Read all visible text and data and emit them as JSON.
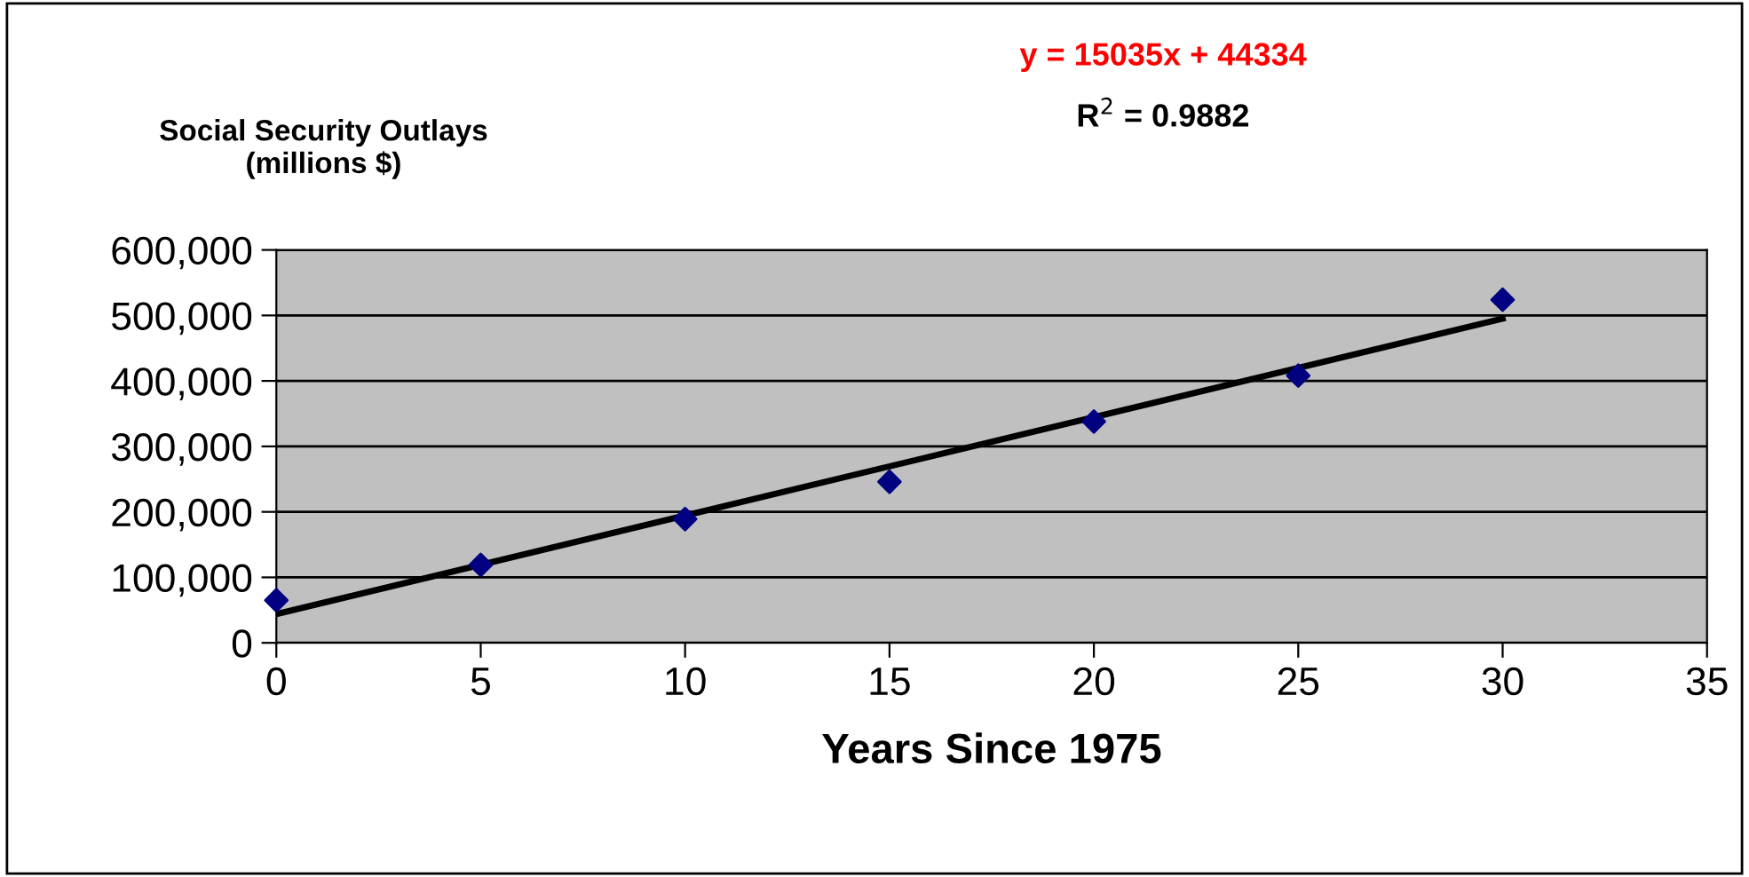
{
  "chart_data": {
    "type": "scatter",
    "title": "Social Security Outlays\n(millions $)",
    "xlabel": "Years Since 1975",
    "annotations": [
      "y = 15035x + 44334",
      "R$^{2}$ = 0.9882"
    ],
    "series": [
      {
        "color": "#000080",
        "marker": "diamond",
        "x": [
          0,
          5,
          10,
          15,
          20,
          25,
          30
        ],
        "values": [
          65000,
          119000,
          189000,
          246000,
          338000,
          408000,
          524000
        ]
      },
      {
        "type": "line",
        "color": "#000000",
        "marker": "none",
        "line_style": "solid",
        "x": [
          0,
          30
        ],
        "values": [
          44000,
          495000
        ]
      }
    ],
    "xlim": [
      0,
      35
    ],
    "xticks": [
      0,
      5,
      10,
      15,
      20,
      25,
      30,
      35
    ],
    "ylim": [
      0,
      600000
    ],
    "yticks": [
      {
        "value": 0,
        "label": "0"
      },
      {
        "value": 100000,
        "label": "100,000"
      },
      {
        "value": 200000,
        "label": "200,000"
      },
      {
        "value": 300000,
        "label": "300,000"
      },
      {
        "value": 400000,
        "label": "400,000"
      },
      {
        "value": 500000,
        "label": "500,000"
      },
      {
        "value": 600000,
        "label": "600,000"
      }
    ],
    "grid": "y",
    "legend": false
  }
}
